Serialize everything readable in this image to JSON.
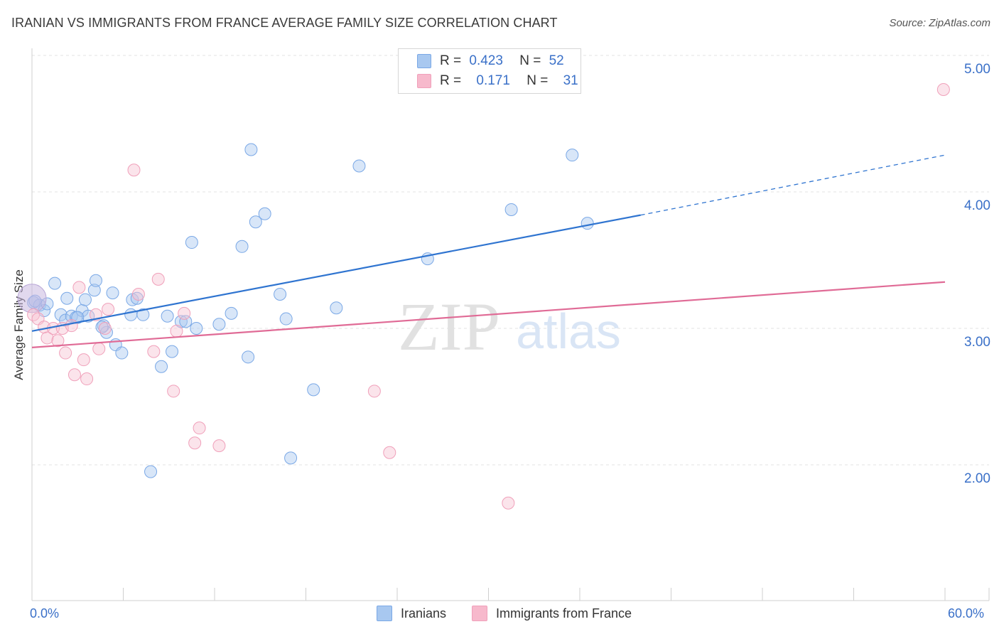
{
  "title": "IRANIAN VS IMMIGRANTS FROM FRANCE AVERAGE FAMILY SIZE CORRELATION CHART",
  "source": "Source: ZipAtlas.com",
  "watermark": {
    "zip": "ZIP",
    "atlas": "atlas"
  },
  "legend_stats": [
    {
      "r_label": "R =",
      "r_value": "0.423",
      "n_label": "N =",
      "n_value": "52",
      "color": "#a8c8f0"
    },
    {
      "r_label": "R =",
      "r_value": "0.171",
      "n_label": "N =",
      "n_value": "31",
      "color": "#f7b9cc"
    }
  ],
  "chart_data": {
    "type": "scatter",
    "title": "IRANIAN VS IMMIGRANTS FROM FRANCE AVERAGE FAMILY SIZE CORRELATION CHART",
    "xlabel": "",
    "ylabel": "Average Family Size",
    "x_tick_labels": [
      "0.0%",
      "60.0%"
    ],
    "y_tick_labels": [
      "2.00",
      "3.00",
      "4.00",
      "5.00"
    ],
    "y_ticks": [
      2,
      3,
      4,
      5
    ],
    "xlim": [
      0,
      60
    ],
    "ylim": [
      1.0,
      5.1
    ],
    "grid": true,
    "legend_position": "bottom",
    "colors": {
      "iranians": "#7aa8e6",
      "france": "#f0a0ba",
      "iranians_line": "#2f74d0",
      "france_line": "#e06b96"
    },
    "series": [
      {
        "name": "Iranians",
        "trend": {
          "x0": 0,
          "y0": 2.98,
          "x1": 40,
          "y1": 3.83,
          "dashed_to_x": 60,
          "dashed_to_y": 4.27
        },
        "points": [
          [
            0.1,
            3.19
          ],
          [
            0.5,
            3.17
          ],
          [
            0.8,
            3.13
          ],
          [
            1.0,
            3.18
          ],
          [
            1.5,
            3.33
          ],
          [
            1.9,
            3.1
          ],
          [
            2.2,
            3.06
          ],
          [
            2.3,
            3.22
          ],
          [
            2.6,
            3.09
          ],
          [
            2.9,
            3.08
          ],
          [
            3.3,
            3.13
          ],
          [
            3.5,
            3.21
          ],
          [
            3.7,
            3.09
          ],
          [
            4.1,
            3.28
          ],
          [
            4.2,
            3.35
          ],
          [
            4.7,
            3.02
          ],
          [
            4.9,
            2.97
          ],
          [
            5.3,
            3.26
          ],
          [
            5.5,
            2.88
          ],
          [
            5.9,
            2.82
          ],
          [
            6.5,
            3.1
          ],
          [
            6.6,
            3.21
          ],
          [
            6.9,
            3.22
          ],
          [
            7.3,
            3.1
          ],
          [
            7.8,
            1.95
          ],
          [
            8.5,
            2.72
          ],
          [
            8.9,
            3.09
          ],
          [
            9.2,
            2.83
          ],
          [
            9.8,
            3.05
          ],
          [
            10.1,
            3.05
          ],
          [
            10.5,
            3.63
          ],
          [
            10.8,
            3.0
          ],
          [
            12.3,
            3.03
          ],
          [
            13.1,
            3.11
          ],
          [
            13.8,
            3.6
          ],
          [
            14.2,
            2.79
          ],
          [
            14.4,
            4.31
          ],
          [
            14.7,
            3.78
          ],
          [
            15.3,
            3.84
          ],
          [
            16.3,
            3.25
          ],
          [
            16.7,
            3.07
          ],
          [
            17.0,
            2.05
          ],
          [
            18.5,
            2.55
          ],
          [
            20.0,
            3.15
          ],
          [
            21.5,
            4.19
          ],
          [
            26.0,
            3.51
          ],
          [
            31.5,
            3.87
          ],
          [
            35.5,
            4.27
          ],
          [
            36.5,
            3.77
          ],
          [
            0.2,
            3.2
          ],
          [
            3.0,
            3.08
          ],
          [
            4.6,
            3.01
          ]
        ]
      },
      {
        "name": "Immigrants from France",
        "trend": {
          "x0": 0,
          "y0": 2.86,
          "x1": 60,
          "y1": 3.34
        },
        "points": [
          [
            0.1,
            3.1
          ],
          [
            0.4,
            3.07
          ],
          [
            0.8,
            3.01
          ],
          [
            1.0,
            2.93
          ],
          [
            1.4,
            3.0
          ],
          [
            1.7,
            2.91
          ],
          [
            2.0,
            3.0
          ],
          [
            2.2,
            2.82
          ],
          [
            2.6,
            3.02
          ],
          [
            2.8,
            2.66
          ],
          [
            3.1,
            3.3
          ],
          [
            3.4,
            2.77
          ],
          [
            3.6,
            2.63
          ],
          [
            4.2,
            3.1
          ],
          [
            4.4,
            2.85
          ],
          [
            4.8,
            3.0
          ],
          [
            5.0,
            3.14
          ],
          [
            6.7,
            4.16
          ],
          [
            7.0,
            3.25
          ],
          [
            8.0,
            2.83
          ],
          [
            8.3,
            3.36
          ],
          [
            9.3,
            2.54
          ],
          [
            9.5,
            2.98
          ],
          [
            10.0,
            3.11
          ],
          [
            10.7,
            2.16
          ],
          [
            11.0,
            2.27
          ],
          [
            12.3,
            2.14
          ],
          [
            22.5,
            2.54
          ],
          [
            23.5,
            2.09
          ],
          [
            31.3,
            1.72
          ],
          [
            59.9,
            4.75
          ]
        ]
      }
    ]
  },
  "bottom_legend": [
    {
      "label": "Iranians",
      "color": "#a8c8f0"
    },
    {
      "label": "Immigrants from France",
      "color": "#f7b9cc"
    }
  ]
}
